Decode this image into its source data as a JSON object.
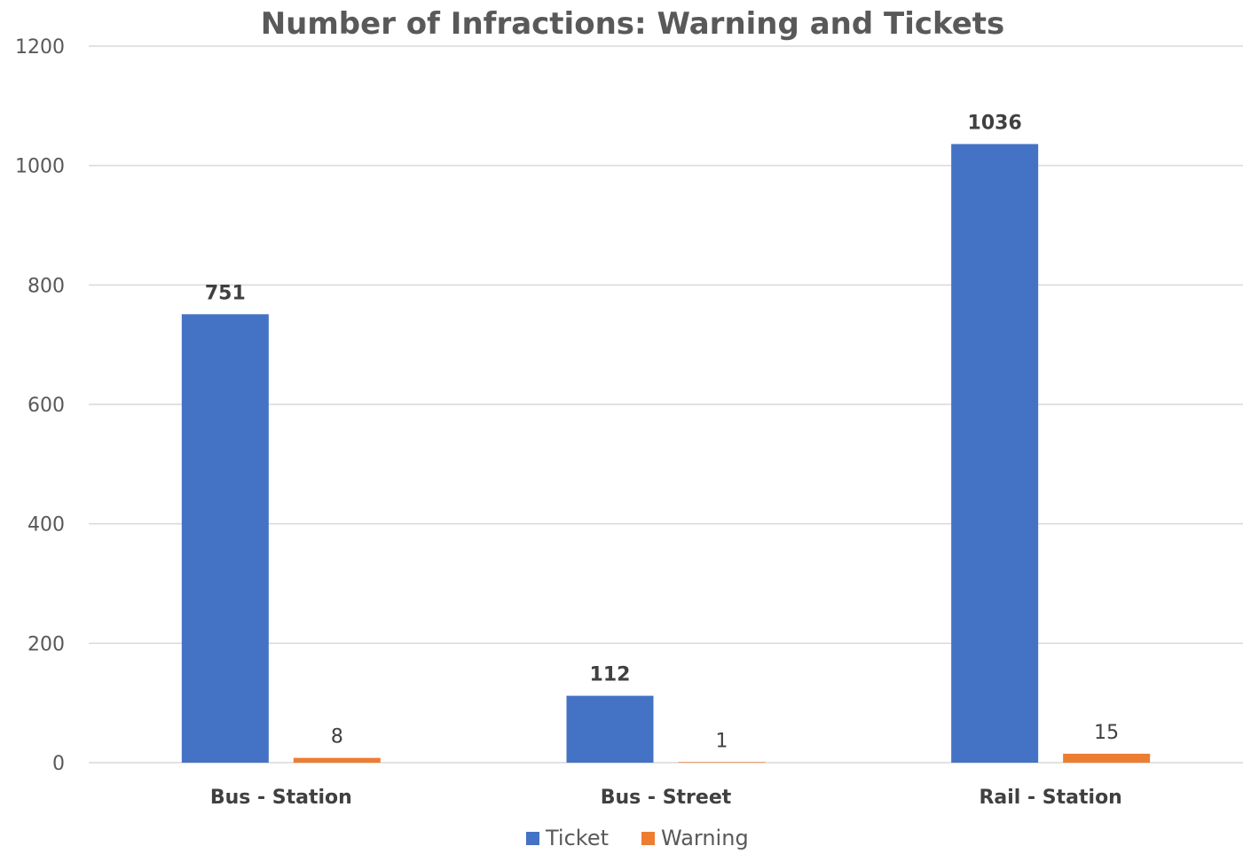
{
  "chart_data": {
    "type": "bar",
    "title": "Number of Infractions: Warning and Tickets",
    "categories": [
      "Bus - Station",
      "Bus - Street",
      "Rail - Station"
    ],
    "series": [
      {
        "name": "Ticket",
        "color": "#4472c4",
        "values": [
          751,
          112,
          1036
        ],
        "data_labels": [
          "751",
          "112",
          "1036"
        ],
        "label_weight": "bold"
      },
      {
        "name": "Warning",
        "color": "#ed7d31",
        "values": [
          8,
          1,
          15
        ],
        "data_labels": [
          "8",
          "1",
          "15"
        ],
        "label_weight": "normal"
      }
    ],
    "y_ticks": [
      "0",
      "200",
      "400",
      "600",
      "800",
      "1000",
      "1200"
    ],
    "ylim": [
      0,
      1200
    ],
    "xlabel": "",
    "ylabel": "",
    "grid": true,
    "legend_position": "bottom"
  }
}
